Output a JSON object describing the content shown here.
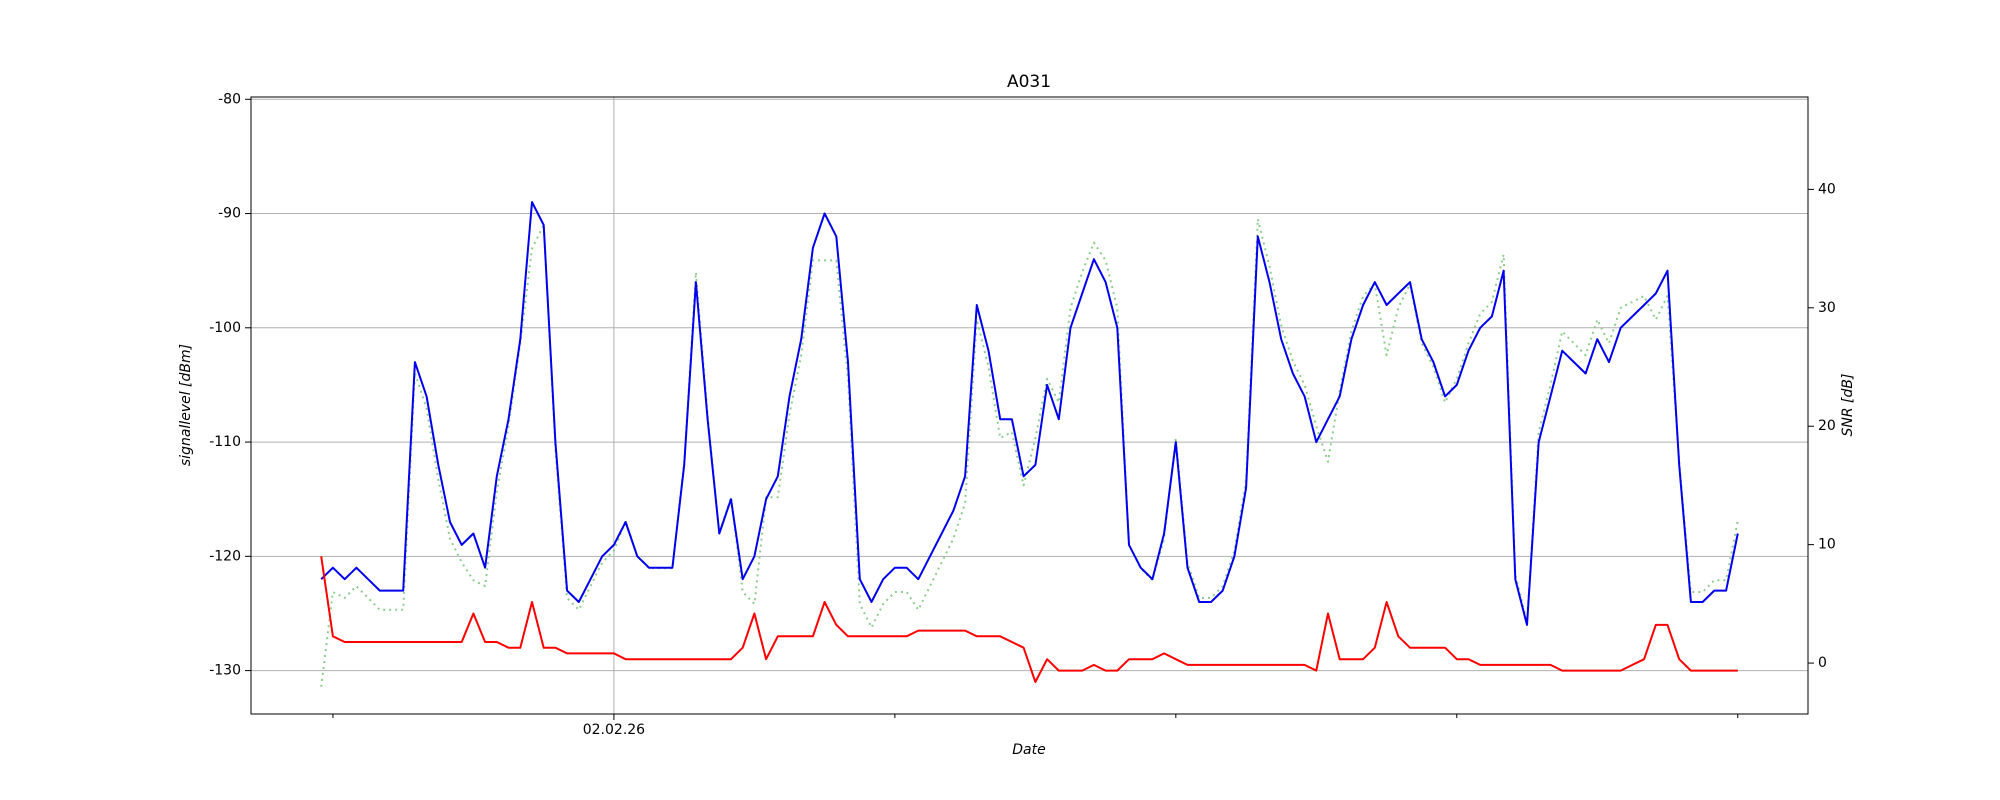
{
  "chart_data": {
    "type": "line",
    "title": "A031",
    "xlabel": "Date",
    "ylabel": "signallevel [dBm]",
    "y2label": "SNR [dB]",
    "x": [
      -1,
      0,
      1,
      2,
      3,
      4,
      5,
      6,
      7,
      8,
      9,
      10,
      11,
      12,
      13,
      14,
      15,
      16,
      17,
      18,
      19,
      20,
      21,
      22,
      23,
      24,
      25,
      26,
      27,
      28,
      29,
      30,
      31,
      32,
      33,
      34,
      35,
      36,
      37,
      38,
      39,
      40,
      41,
      42,
      43,
      44,
      45,
      46,
      47,
      48,
      49,
      50,
      51,
      52,
      53,
      54,
      55,
      56,
      57,
      58,
      59,
      60,
      61,
      62,
      63,
      64,
      65,
      66,
      67,
      68,
      69,
      70,
      71,
      72,
      73,
      74,
      75,
      76,
      77,
      78,
      79,
      80,
      81,
      82,
      83,
      84,
      85,
      86,
      87,
      88,
      89,
      90,
      91,
      92,
      93,
      94,
      95,
      96,
      97,
      98,
      99,
      100,
      101,
      102,
      103,
      104,
      105,
      106,
      107,
      108,
      109,
      110,
      111,
      112,
      113,
      114,
      115,
      116,
      117,
      118,
      119,
      120
    ],
    "series": [
      {
        "color": "#0000ee",
        "linestyle": "solid",
        "axis": "y",
        "values": [
          -122,
          -121,
          -122,
          -121,
          -122,
          -123,
          -123,
          -123,
          -103,
          -106,
          -112,
          -117,
          -119,
          -118,
          -121,
          -113,
          -108,
          -101,
          -89,
          -91,
          -110,
          -123,
          -124,
          -122,
          -120,
          -119,
          -117,
          -120,
          -121,
          -121,
          -121,
          -112,
          -96,
          -108,
          -118,
          -115,
          -122,
          -120,
          -115,
          -113,
          -106,
          -101,
          -93,
          -90,
          -92,
          -103,
          -122,
          -124,
          -122,
          -121,
          -121,
          -122,
          -120,
          -118,
          -116,
          -113,
          -98,
          -102,
          -108,
          -108,
          -113,
          -112,
          -105,
          -108,
          -100,
          -97,
          -94,
          -96,
          -100,
          -119,
          -121,
          -122,
          -118,
          -110,
          -121,
          -124,
          -124,
          -123,
          -120,
          -114,
          -92,
          -96,
          -101,
          -104,
          -106,
          -110,
          -108,
          -106,
          -101,
          -98,
          -96,
          -98,
          -97,
          -96,
          -101,
          -103,
          -106,
          -105,
          -102,
          -100,
          -99,
          -95,
          -122,
          -126,
          -110,
          -106,
          -102,
          -103,
          -104,
          -101,
          -103,
          -100,
          -99,
          -98,
          -97,
          -95,
          -112,
          -124,
          -124,
          -123,
          -123,
          -118
        ]
      },
      {
        "color": "#ff0000",
        "linestyle": "solid",
        "axis": "y",
        "values": [
          -120,
          -127,
          -127.5,
          -127.5,
          -127.5,
          -127.5,
          -127.5,
          -127.5,
          -127.5,
          -127.5,
          -127.5,
          -127.5,
          -127.5,
          -125,
          -127.5,
          -127.5,
          -128,
          -128,
          -124,
          -128,
          -128,
          -128.5,
          -128.5,
          -128.5,
          -128.5,
          -128.5,
          -129,
          -129,
          -129,
          -129,
          -129,
          -129,
          -129,
          -129,
          -129,
          -129,
          -128,
          -125,
          -129,
          -127,
          -127,
          -127,
          -127,
          -124,
          -126,
          -127,
          -127,
          -127,
          -127,
          -127,
          -127,
          -126.5,
          -126.5,
          -126.5,
          -126.5,
          -126.5,
          -127,
          -127,
          -127,
          -127.5,
          -128,
          -131,
          -129,
          -130,
          -130,
          -130,
          -129.5,
          -130,
          -130,
          -129,
          -129,
          -129,
          -128.5,
          -129,
          -129.5,
          -129.5,
          -129.5,
          -129.5,
          -129.5,
          -129.5,
          -129.5,
          -129.5,
          -129.5,
          -129.5,
          -129.5,
          -130,
          -125,
          -129,
          -129,
          -129,
          -128,
          -124,
          -127,
          -128,
          -128,
          -128,
          -128,
          -129,
          -129,
          -129.5,
          -129.5,
          -129.5,
          -129.5,
          -129.5,
          -129.5,
          -129.5,
          -130,
          -130,
          -130,
          -130,
          -130,
          -130,
          -129.5,
          -129,
          -126,
          -126,
          -129,
          -130,
          -130,
          -130,
          -130,
          -130
        ]
      },
      {
        "color": "#8fcc8f",
        "linestyle": "dotted",
        "axis": "y2",
        "values": [
          -2,
          6,
          5.5,
          6.5,
          5.5,
          4.5,
          4.5,
          4.5,
          24.5,
          21.5,
          15.5,
          10.5,
          8.5,
          7,
          6.5,
          14.5,
          20,
          27,
          35,
          37,
          18,
          5.5,
          4.5,
          6.5,
          8.5,
          9.5,
          12,
          9,
          8,
          8,
          8,
          17,
          33,
          21,
          11,
          14,
          6,
          5,
          14,
          14,
          21,
          26,
          34,
          34,
          34,
          24,
          5,
          3,
          5,
          6,
          6,
          4.5,
          6.5,
          8.5,
          10.5,
          13.5,
          29,
          25,
          19,
          19.5,
          15,
          19,
          24,
          22,
          30,
          33,
          35.5,
          34,
          30,
          10,
          8,
          7,
          10.5,
          19,
          8.5,
          5.5,
          5.5,
          6.5,
          9.5,
          15.5,
          37.5,
          33.5,
          28.5,
          25.5,
          23.5,
          20,
          17,
          23,
          28,
          31,
          32,
          26,
          30,
          32,
          27,
          25,
          22,
          24,
          27,
          29.5,
          30.5,
          34.5,
          7.5,
          3.5,
          19.5,
          23.5,
          28,
          27,
          26,
          29,
          27,
          30,
          30.5,
          31,
          29,
          31,
          17,
          6,
          6,
          7,
          7,
          12
        ]
      }
    ],
    "xlim": [
      -7,
      126
    ],
    "xticks": [
      {
        "value": 24,
        "label": "02.02.26"
      }
    ],
    "xminorticks": [
      0,
      48,
      72,
      96,
      120
    ],
    "ylim": [
      -133.8,
      -79.8
    ],
    "yticks": [
      -130,
      -120,
      -110,
      -100,
      -90,
      -80
    ],
    "y2lim": [
      -4.3,
      47.8
    ],
    "y2ticks": [
      0,
      10,
      20,
      30,
      40
    ],
    "grid": true
  }
}
